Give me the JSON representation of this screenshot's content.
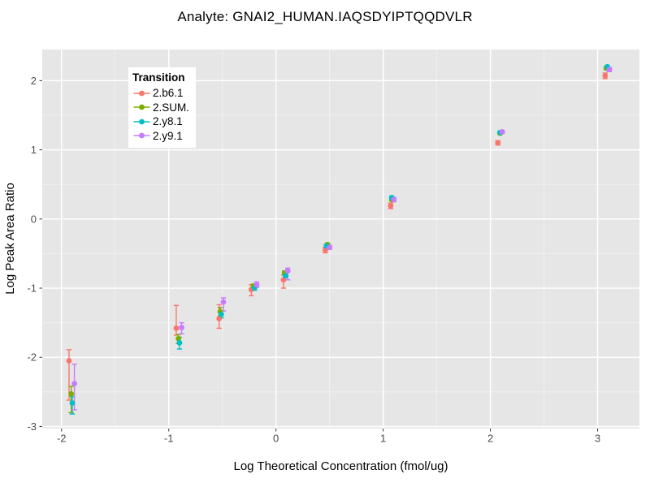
{
  "chart_data": {
    "type": "scatter",
    "title": "Analyte: GNAI2_HUMAN.IAQSDYIPTQQDVLR",
    "xlabel": "Log Theoretical Concentration (fmol/ug)",
    "ylabel": "Log Peak Area Ratio",
    "xlim": [
      -2.18,
      3.39
    ],
    "ylim": [
      -3.03,
      2.45
    ],
    "x_ticks": [
      -2,
      -1,
      0,
      1,
      2,
      3
    ],
    "y_ticks": [
      2,
      1,
      0,
      -1,
      -2,
      -3
    ],
    "x_minor_ticks": [
      -1.5,
      -0.5,
      0.5,
      1.5,
      2.5
    ],
    "y_minor_ticks": [
      1.5,
      0.5,
      -0.5,
      -1.5,
      -2.5
    ],
    "grid": true,
    "panel_bg": "#E6E6E6",
    "grid_major_color": "#FFFFFF",
    "grid_minor_color": "#F2F2F2",
    "axis_text_color": "#4D4D4D",
    "tick_mark_color": "#333333",
    "legend": {
      "title": "Transition",
      "position": "inside-top-left"
    },
    "series": [
      {
        "name": "2.b6.1",
        "color": "#F8766D",
        "points": [
          {
            "x": -1.93,
            "y": -2.05,
            "ymin": -2.62,
            "ymax": -1.89
          },
          {
            "x": -0.93,
            "y": -1.58,
            "ymin": -1.68,
            "ymax": -1.25
          },
          {
            "x": -0.53,
            "y": -1.44,
            "ymin": -1.58,
            "ymax": -1.24
          },
          {
            "x": -0.23,
            "y": -1.02,
            "ymin": -1.11,
            "ymax": -0.95
          },
          {
            "x": 0.07,
            "y": -0.88,
            "ymin": -1.0,
            "ymax": -0.81
          },
          {
            "x": 0.46,
            "y": -0.45,
            "ymin": -0.49,
            "ymax": -0.41
          },
          {
            "x": 1.07,
            "y": 0.19,
            "ymin": 0.15,
            "ymax": 0.23
          },
          {
            "x": 2.07,
            "y": 1.1,
            "ymin": 1.07,
            "ymax": 1.13
          },
          {
            "x": 3.07,
            "y": 2.07,
            "ymin": 2.03,
            "ymax": 2.11
          }
        ]
      },
      {
        "name": "2.SUM.",
        "color": "#7CAE00",
        "points": [
          {
            "x": -1.91,
            "y": -2.53,
            "ymin": -2.8,
            "ymax": -2.42
          },
          {
            "x": -0.91,
            "y": -1.73,
            "ymin": -1.8,
            "ymax": -1.67
          },
          {
            "x": -0.52,
            "y": -1.34,
            "ymin": -1.4,
            "ymax": -1.28
          },
          {
            "x": -0.21,
            "y": -0.97,
            "ymin": -1.0,
            "ymax": -0.94
          },
          {
            "x": 0.08,
            "y": -0.78,
            "ymin": -0.81,
            "ymax": -0.75
          },
          {
            "x": 0.48,
            "y": -0.37,
            "ymin": -0.39,
            "ymax": -0.35
          },
          {
            "x": 1.08,
            "y": 0.28,
            "ymin": 0.26,
            "ymax": 0.3
          },
          {
            "x": 2.09,
            "y": 1.24,
            "ymin": 1.22,
            "ymax": 1.26
          },
          {
            "x": 3.08,
            "y": 2.18,
            "ymin": 2.16,
            "ymax": 2.2
          }
        ]
      },
      {
        "name": "2.y8.1",
        "color": "#00BFC4",
        "points": [
          {
            "x": -1.9,
            "y": -2.66,
            "ymin": -2.82,
            "ymax": -2.57
          },
          {
            "x": -0.9,
            "y": -1.79,
            "ymin": -1.88,
            "ymax": -1.71
          },
          {
            "x": -0.51,
            "y": -1.38,
            "ymin": -1.43,
            "ymax": -1.33
          },
          {
            "x": -0.2,
            "y": -1.0,
            "ymin": -1.03,
            "ymax": -0.97
          },
          {
            "x": 0.09,
            "y": -0.82,
            "ymin": -0.85,
            "ymax": -0.79
          },
          {
            "x": 0.47,
            "y": -0.39,
            "ymin": -0.41,
            "ymax": -0.37
          },
          {
            "x": 1.08,
            "y": 0.31,
            "ymin": 0.29,
            "ymax": 0.33
          },
          {
            "x": 2.09,
            "y": 1.25,
            "ymin": 1.23,
            "ymax": 1.27
          },
          {
            "x": 3.09,
            "y": 2.2,
            "ymin": 2.18,
            "ymax": 2.22
          }
        ]
      },
      {
        "name": "2.y9.1",
        "color": "#C77CFF",
        "points": [
          {
            "x": -1.88,
            "y": -2.38,
            "ymin": -2.76,
            "ymax": -2.1
          },
          {
            "x": -0.88,
            "y": -1.57,
            "ymin": -1.66,
            "ymax": -1.5
          },
          {
            "x": -0.49,
            "y": -1.2,
            "ymin": -1.33,
            "ymax": -1.14
          },
          {
            "x": -0.18,
            "y": -0.95,
            "ymin": -0.99,
            "ymax": -0.91
          },
          {
            "x": 0.11,
            "y": -0.75,
            "ymin": -0.88,
            "ymax": -0.71
          },
          {
            "x": 0.5,
            "y": -0.41,
            "ymin": -0.44,
            "ymax": -0.38
          },
          {
            "x": 1.1,
            "y": 0.28,
            "ymin": 0.25,
            "ymax": 0.31
          },
          {
            "x": 2.11,
            "y": 1.26,
            "ymin": 1.24,
            "ymax": 1.28
          },
          {
            "x": 3.11,
            "y": 2.16,
            "ymin": 2.13,
            "ymax": 2.19
          }
        ]
      }
    ]
  }
}
